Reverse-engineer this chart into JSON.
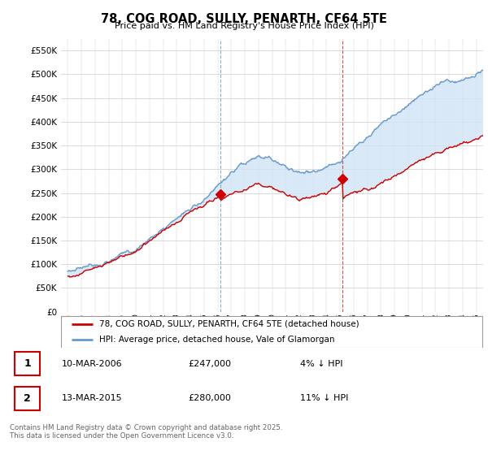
{
  "title": "78, COG ROAD, SULLY, PENARTH, CF64 5TE",
  "subtitle": "Price paid vs. HM Land Registry's House Price Index (HPI)",
  "legend_line1": "78, COG ROAD, SULLY, PENARTH, CF64 5TE (detached house)",
  "legend_line2": "HPI: Average price, detached house, Vale of Glamorgan",
  "footer": "Contains HM Land Registry data © Crown copyright and database right 2025.\nThis data is licensed under the Open Government Licence v3.0.",
  "annotation1_label": "1",
  "annotation1_date": "10-MAR-2006",
  "annotation1_price": "£247,000",
  "annotation1_hpi": "4% ↓ HPI",
  "annotation2_label": "2",
  "annotation2_date": "13-MAR-2015",
  "annotation2_price": "£280,000",
  "annotation2_hpi": "11% ↓ HPI",
  "red_color": "#cc0000",
  "blue_color": "#6699cc",
  "blue_fill_color": "#d0e4f5",
  "marker1_x": 2006.19,
  "marker1_y": 247000,
  "marker2_x": 2015.19,
  "marker2_y": 280000,
  "vline1_x": 2006.19,
  "vline2_x": 2015.19,
  "ylim": [
    0,
    575000
  ],
  "xlim": [
    1994.5,
    2025.5
  ],
  "yticks": [
    0,
    50000,
    100000,
    150000,
    200000,
    250000,
    300000,
    350000,
    400000,
    450000,
    500000,
    550000
  ]
}
